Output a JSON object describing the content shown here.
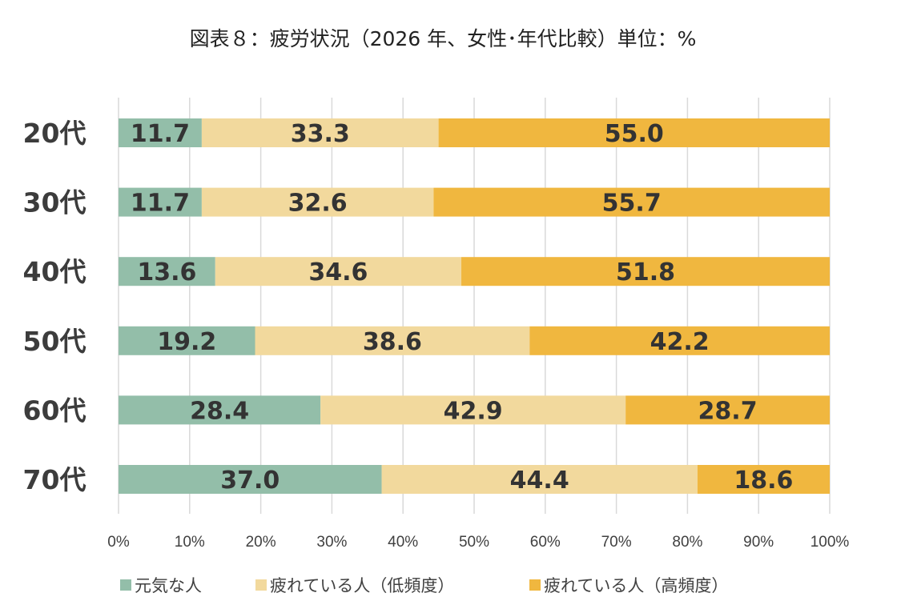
{
  "chart_data": {
    "type": "bar",
    "orientation": "horizontal",
    "stacked": true,
    "percent_scale": true,
    "title": "図表８：疲労状況（2026 年、女性･年代比較）単位：%",
    "categories": [
      "20代",
      "30代",
      "40代",
      "50代",
      "60代",
      "70代"
    ],
    "series": [
      {
        "name": "元気な人",
        "color": "#93bea9",
        "values": [
          11.7,
          11.7,
          13.6,
          19.2,
          28.4,
          37.0
        ]
      },
      {
        "name": "疲れている人（低頻度）",
        "color": "#f2d99d",
        "values": [
          33.3,
          32.6,
          34.6,
          38.6,
          42.9,
          44.4
        ]
      },
      {
        "name": "疲れている人（高頻度）",
        "color": "#f0b73f",
        "values": [
          55.0,
          55.7,
          51.8,
          42.2,
          28.7,
          18.6
        ]
      }
    ],
    "x_ticks": [
      "0%",
      "10%",
      "20%",
      "30%",
      "40%",
      "50%",
      "60%",
      "70%",
      "80%",
      "90%",
      "100%"
    ],
    "xlim": [
      0,
      100
    ],
    "grid": true,
    "legend_position": "bottom",
    "data_labels": true
  }
}
